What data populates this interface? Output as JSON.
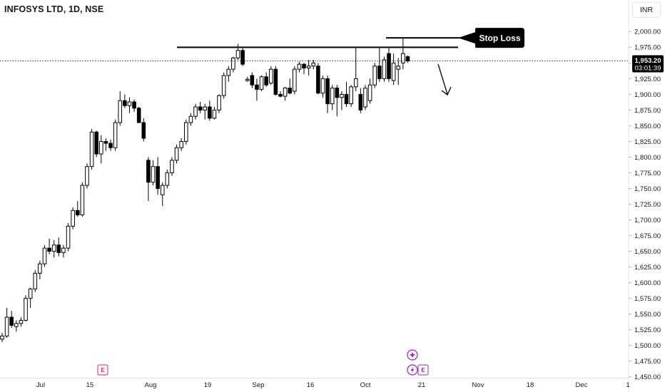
{
  "header": {
    "symbol_title": "INFOSYS LTD, 1D, NSE"
  },
  "currency_label": "INR",
  "price_tag": {
    "price": "1,953.20",
    "countdown": "03:01:39"
  },
  "annotation": {
    "label": "Stop Loss"
  },
  "events": {
    "earnings_letter": "E"
  },
  "colors": {
    "bull": "#ffffff",
    "bear": "#000000",
    "outline": "#000000",
    "axis_text": "#131722",
    "earnings": "#e91e63",
    "dividend": "#9c27b0"
  },
  "chart_data": {
    "type": "candlestick",
    "ylim": [
      1450,
      2010
    ],
    "y_ticks": [
      "1,450.00",
      "1,475.00",
      "1,500.00",
      "1,525.00",
      "1,550.00",
      "1,575.00",
      "1,600.00",
      "1,625.00",
      "1,650.00",
      "1,675.00",
      "1,700.00",
      "1,725.00",
      "1,750.00",
      "1,775.00",
      "1,800.00",
      "1,825.00",
      "1,850.00",
      "1,875.00",
      "1,900.00",
      "1,925.00",
      "1,950.00",
      "1,975.00",
      "2,000.00"
    ],
    "x_ticks": [
      "Jul",
      "15",
      "Aug",
      "19",
      "Sep",
      "16",
      "Oct",
      "21",
      "Nov",
      "18",
      "Dec",
      "1"
    ],
    "last_price": 1953.2,
    "resistance_level": 1975,
    "stop_loss_level": 1990,
    "candles": [
      [
        1510,
        1520,
        1505,
        1515
      ],
      [
        1515,
        1560,
        1512,
        1545
      ],
      [
        1545,
        1555,
        1528,
        1532
      ],
      [
        1530,
        1540,
        1522,
        1535
      ],
      [
        1535,
        1545,
        1530,
        1540
      ],
      [
        1540,
        1580,
        1538,
        1575
      ],
      [
        1575,
        1592,
        1560,
        1590
      ],
      [
        1590,
        1620,
        1585,
        1615
      ],
      [
        1615,
        1635,
        1605,
        1630
      ],
      [
        1630,
        1660,
        1625,
        1655
      ],
      [
        1655,
        1670,
        1645,
        1650
      ],
      [
        1650,
        1668,
        1640,
        1660
      ],
      [
        1660,
        1672,
        1642,
        1648
      ],
      [
        1648,
        1660,
        1640,
        1655
      ],
      [
        1655,
        1695,
        1650,
        1690
      ],
      [
        1690,
        1720,
        1685,
        1715
      ],
      [
        1715,
        1730,
        1705,
        1708
      ],
      [
        1708,
        1760,
        1705,
        1755
      ],
      [
        1755,
        1790,
        1750,
        1785
      ],
      [
        1785,
        1845,
        1780,
        1840
      ],
      [
        1840,
        1842,
        1800,
        1805
      ],
      [
        1805,
        1835,
        1790,
        1825
      ],
      [
        1825,
        1830,
        1810,
        1822
      ],
      [
        1822,
        1828,
        1810,
        1815
      ],
      [
        1815,
        1860,
        1810,
        1855
      ],
      [
        1855,
        1905,
        1850,
        1890
      ],
      [
        1890,
        1900,
        1878,
        1882
      ],
      [
        1882,
        1895,
        1870,
        1888
      ],
      [
        1888,
        1892,
        1872,
        1878
      ],
      [
        1878,
        1880,
        1855,
        1855
      ],
      [
        1855,
        1862,
        1825,
        1830
      ],
      [
        1795,
        1800,
        1730,
        1760
      ],
      [
        1760,
        1795,
        1755,
        1785
      ],
      [
        1785,
        1800,
        1740,
        1750
      ],
      [
        1740,
        1760,
        1722,
        1755
      ],
      [
        1755,
        1780,
        1750,
        1775
      ],
      [
        1775,
        1800,
        1770,
        1795
      ],
      [
        1795,
        1820,
        1790,
        1815
      ],
      [
        1815,
        1830,
        1810,
        1825
      ],
      [
        1825,
        1860,
        1820,
        1855
      ],
      [
        1855,
        1870,
        1850,
        1865
      ],
      [
        1865,
        1885,
        1860,
        1880
      ],
      [
        1880,
        1888,
        1870,
        1875
      ],
      [
        1875,
        1885,
        1860,
        1880
      ],
      [
        1880,
        1890,
        1858,
        1862
      ],
      [
        1862,
        1880,
        1860,
        1875
      ],
      [
        1875,
        1900,
        1870,
        1898
      ],
      [
        1898,
        1935,
        1893,
        1930
      ],
      [
        1930,
        1945,
        1920,
        1940
      ],
      [
        1940,
        1960,
        1935,
        1958
      ],
      [
        1958,
        1980,
        1955,
        1970
      ],
      [
        1970,
        1975,
        1945,
        1948
      ],
      [
        1922,
        1928,
        1920,
        1924
      ],
      [
        1930,
        1935,
        1910,
        1915
      ],
      [
        1915,
        1925,
        1890,
        1908
      ],
      [
        1908,
        1930,
        1905,
        1928
      ],
      [
        1928,
        1935,
        1912,
        1915
      ],
      [
        1918,
        1945,
        1915,
        1940
      ],
      [
        1940,
        1945,
        1898,
        1900
      ],
      [
        1900,
        1905,
        1895,
        1897
      ],
      [
        1897,
        1912,
        1890,
        1910
      ],
      [
        1910,
        1925,
        1900,
        1902
      ],
      [
        1905,
        1945,
        1900,
        1940
      ],
      [
        1940,
        1952,
        1935,
        1948
      ],
      [
        1948,
        1950,
        1932,
        1942
      ],
      [
        1942,
        1955,
        1930,
        1945
      ],
      [
        1945,
        1955,
        1940,
        1950
      ],
      [
        1945,
        1950,
        1900,
        1902
      ],
      [
        1902,
        1930,
        1895,
        1925
      ],
      [
        1925,
        1930,
        1870,
        1885
      ],
      [
        1885,
        1915,
        1875,
        1910
      ],
      [
        1910,
        1915,
        1865,
        1895
      ],
      [
        1895,
        1905,
        1875,
        1900
      ],
      [
        1900,
        1920,
        1880,
        1885
      ],
      [
        1885,
        1915,
        1880,
        1912
      ],
      [
        1912,
        1975,
        1905,
        1925
      ],
      [
        1900,
        1910,
        1870,
        1875
      ],
      [
        1880,
        1915,
        1875,
        1910
      ],
      [
        1890,
        1925,
        1885,
        1915
      ],
      [
        1915,
        1950,
        1910,
        1945
      ],
      [
        1945,
        1975,
        1920,
        1925
      ],
      [
        1925,
        1960,
        1920,
        1955
      ],
      [
        1965,
        1975,
        1920,
        1925
      ],
      [
        1922,
        1965,
        1915,
        1950
      ],
      [
        1940,
        1958,
        1915,
        1945
      ],
      [
        1950,
        1990,
        1940,
        1965
      ],
      [
        1960,
        1962,
        1950,
        1953.2
      ]
    ]
  }
}
